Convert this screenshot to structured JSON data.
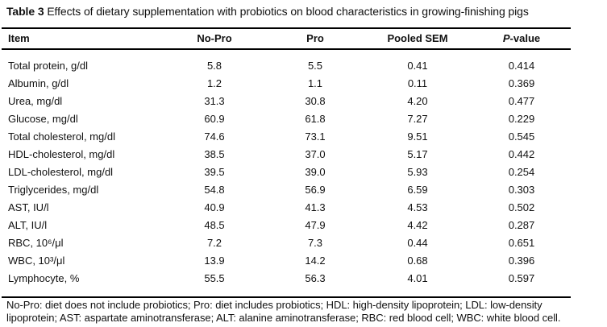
{
  "caption": {
    "label": "Table 3",
    "text": "Effects of dietary supplementation with probiotics on blood characteristics in growing-finishing pigs"
  },
  "table": {
    "columns": {
      "item": "Item",
      "no_pro": "No-Pro",
      "pro": "Pro",
      "sem": "Pooled SEM",
      "p_prefix": "P",
      "p_suffix": "-value"
    },
    "rows": [
      {
        "item": "Total protein, g/dl",
        "no_pro": "5.8",
        "pro": "5.5",
        "sem": "0.41",
        "p": "0.414"
      },
      {
        "item": "Albumin, g/dl",
        "no_pro": "1.2",
        "pro": "1.1",
        "sem": "0.11",
        "p": "0.369"
      },
      {
        "item": "Urea, mg/dl",
        "no_pro": "31.3",
        "pro": "30.8",
        "sem": "4.20",
        "p": "0.477"
      },
      {
        "item": "Glucose, mg/dl",
        "no_pro": "60.9",
        "pro": "61.8",
        "sem": "7.27",
        "p": "0.229"
      },
      {
        "item": "Total cholesterol, mg/dl",
        "no_pro": "74.6",
        "pro": "73.1",
        "sem": "9.51",
        "p": "0.545"
      },
      {
        "item": "HDL-cholesterol, mg/dl",
        "no_pro": "38.5",
        "pro": "37.0",
        "sem": "5.17",
        "p": "0.442"
      },
      {
        "item": "LDL-cholesterol, mg/dl",
        "no_pro": "39.5",
        "pro": "39.0",
        "sem": "5.93",
        "p": "0.254"
      },
      {
        "item": "Triglycerides, mg/dl",
        "no_pro": "54.8",
        "pro": "56.9",
        "sem": "6.59",
        "p": "0.303"
      },
      {
        "item": "AST, IU/l",
        "no_pro": "40.9",
        "pro": "41.3",
        "sem": "4.53",
        "p": "0.502"
      },
      {
        "item": "ALT, IU/l",
        "no_pro": "48.5",
        "pro": "47.9",
        "sem": "4.42",
        "p": "0.287"
      },
      {
        "item": "RBC, 10⁶/μl",
        "no_pro": "7.2",
        "pro": "7.3",
        "sem": "0.44",
        "p": "0.651"
      },
      {
        "item": "WBC, 10³/μl",
        "no_pro": "13.9",
        "pro": "14.2",
        "sem": "0.68",
        "p": "0.396"
      },
      {
        "item": "Lymphocyte, %",
        "no_pro": "55.5",
        "pro": "56.3",
        "sem": "4.01",
        "p": "0.597"
      }
    ]
  },
  "footnote": {
    "line1": "No-Pro: diet does not include probiotics; Pro: diet includes probiotics; HDL: high-density lipoprotein; LDL: low-density",
    "line2": "lipoprotein; AST: aspartate aminotransferase; ALT: alanine aminotransferase; RBC: red blood cell; WBC: white blood cell."
  },
  "colors": {
    "background": "#ffffff",
    "text": "#111111",
    "rule": "#000000"
  }
}
